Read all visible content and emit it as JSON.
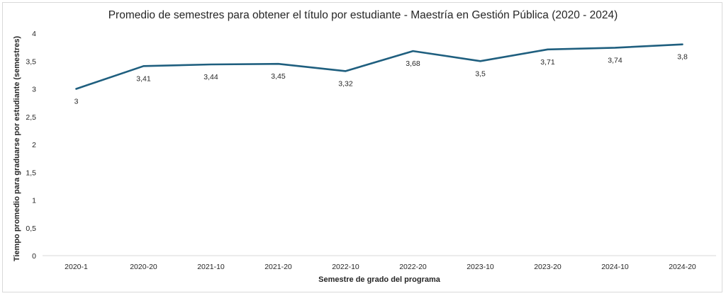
{
  "chart_data": {
    "type": "line",
    "title": "Promedio de semestres para obtener el título por estudiante  - Maestría en Gestión Pública (2020 - 2024)",
    "xlabel": "Semestre de grado del programa",
    "ylabel": "Tiempo promedio para graduarse por estudiante (semestres)",
    "categories": [
      "2020-1",
      "2020-20",
      "2021-10",
      "2021-20",
      "2022-10",
      "2022-20",
      "2023-10",
      "2023-20",
      "2024-10",
      "2024-20"
    ],
    "values": [
      3,
      3.41,
      3.44,
      3.45,
      3.32,
      3.68,
      3.5,
      3.71,
      3.74,
      3.8
    ],
    "data_labels": [
      "3",
      "3,41",
      "3,44",
      "3,45",
      "3,32",
      "3,68",
      "3,5",
      "3,71",
      "3,74",
      "3,8"
    ],
    "ylim": [
      0,
      4
    ],
    "yticks": [
      0,
      0.5,
      1,
      1.5,
      2,
      2.5,
      3,
      3.5,
      4
    ],
    "ytick_labels": [
      "0",
      "0,5",
      "1",
      "1,5",
      "2",
      "2,5",
      "3",
      "3,5",
      "4"
    ],
    "grid": false,
    "legend": "none",
    "line_color": "#1f5f7f"
  }
}
